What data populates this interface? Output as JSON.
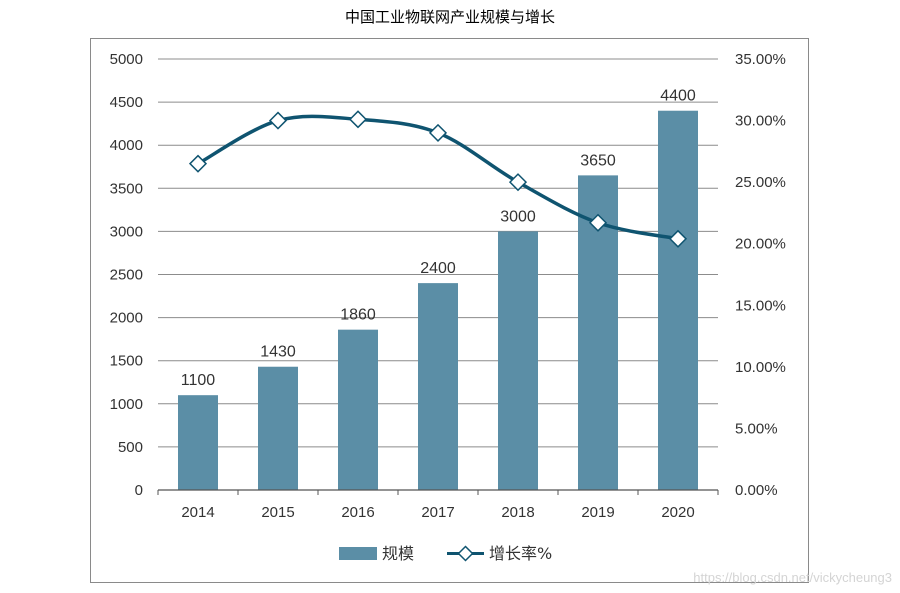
{
  "chart_data": {
    "type": "bar",
    "title": "中国工业物联网产业规模与增长",
    "categories": [
      "2014",
      "2015",
      "2016",
      "2017",
      "2018",
      "2019",
      "2020"
    ],
    "series": [
      {
        "name": "规模",
        "kind": "bar",
        "axis": "left",
        "color": "#5b8ea6",
        "values": [
          1100,
          1430,
          1860,
          2400,
          3000,
          3650,
          4400
        ],
        "labels": [
          "1100",
          "1430",
          "1860",
          "2400",
          "3000",
          "3650",
          "4400"
        ]
      },
      {
        "name": "增长率%",
        "kind": "line",
        "axis": "right",
        "color": "#0f5470",
        "marker": "diamond",
        "values": [
          26.5,
          30.0,
          30.1,
          29.0,
          25.0,
          21.7,
          20.4
        ]
      }
    ],
    "y_left": {
      "min": 0,
      "max": 5000,
      "ticks": [
        "0",
        "500",
        "1000",
        "1500",
        "2000",
        "2500",
        "3000",
        "3500",
        "4000",
        "4500",
        "5000"
      ]
    },
    "y_right": {
      "min": 0,
      "max": 35,
      "ticks": [
        "0.00%",
        "5.00%",
        "10.00%",
        "15.00%",
        "20.00%",
        "25.00%",
        "30.00%",
        "35.00%"
      ]
    },
    "grid": true,
    "legend_position": "bottom"
  },
  "watermark": "https://blog.csdn.net/vickycheung3"
}
